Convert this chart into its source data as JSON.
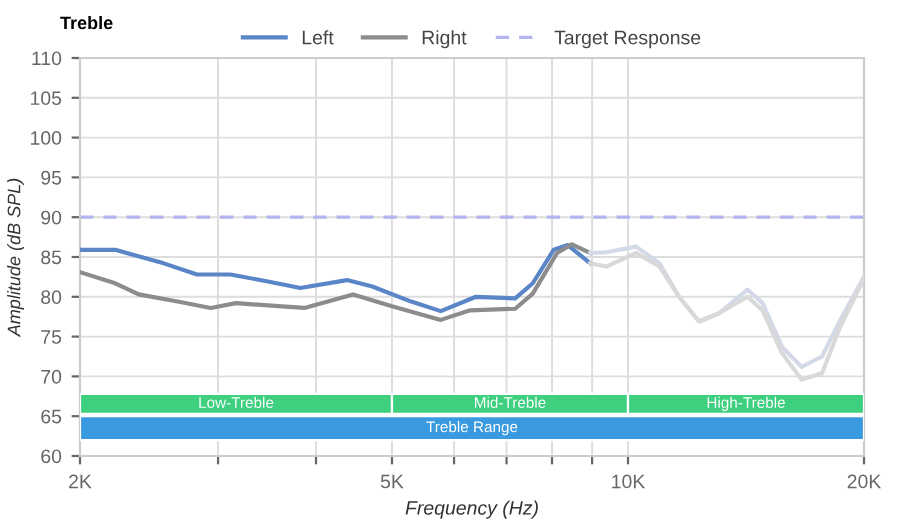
{
  "chart_data": {
    "type": "line",
    "title": "Treble",
    "xlabel": "Frequency (Hz)",
    "ylabel": "Amplitude (dB SPL)",
    "log": "x",
    "xlim": [
      2000,
      20000
    ],
    "ylim": [
      60,
      110
    ],
    "xticks": [
      {
        "value": 2000,
        "label": "2K"
      },
      {
        "value": 3000,
        "label": null
      },
      {
        "value": 4000,
        "label": null
      },
      {
        "value": 5000,
        "label": "5K"
      },
      {
        "value": 6000,
        "label": null
      },
      {
        "value": 7000,
        "label": null
      },
      {
        "value": 8000,
        "label": null
      },
      {
        "value": 9000,
        "label": null
      },
      {
        "value": 10000,
        "label": "10K"
      },
      {
        "value": 20000,
        "label": "20K"
      }
    ],
    "yticks": [
      60,
      65,
      70,
      75,
      80,
      85,
      90,
      95,
      100,
      105,
      110
    ],
    "grid": true,
    "legend": "top",
    "marker": "none",
    "series": [
      {
        "name": "Left",
        "color": "#5a86c8",
        "x": [
          2000,
          2218,
          2558,
          2820,
          3110,
          3486,
          3820,
          4380,
          4720,
          5290,
          5770,
          6400,
          7180,
          7560,
          8040,
          8380,
          8950
        ],
        "values": [
          85.9,
          85.9,
          84.2,
          82.8,
          82.8,
          81.9,
          81.1,
          82.1,
          81.3,
          79.4,
          78.2,
          80.0,
          79.8,
          81.7,
          85.9,
          86.5,
          84.2
        ]
      },
      {
        "name": "Right",
        "color": "#8c8c8c",
        "x": [
          2000,
          2218,
          2376,
          2664,
          2936,
          3162,
          3622,
          3866,
          4460,
          5000,
          5770,
          6290,
          7180,
          7560,
          8120,
          8480,
          8950
        ],
        "values": [
          83.1,
          81.7,
          80.3,
          79.4,
          78.6,
          79.2,
          78.8,
          78.6,
          80.3,
          78.8,
          77.1,
          78.3,
          78.5,
          80.4,
          85.5,
          86.6,
          85.5
        ]
      },
      {
        "color": "#d3d9e6",
        "x": [
          8950,
          9380,
          10240,
          10970,
          11620,
          12320,
          13050,
          14200,
          14850,
          15720,
          16650,
          17680,
          18660,
          20000
        ],
        "values": [
          85.5,
          85.6,
          86.3,
          84.2,
          80.0,
          76.9,
          77.9,
          80.9,
          79.2,
          73.7,
          71.2,
          72.5,
          77.1,
          82.5
        ]
      },
      {
        "color": "#d9d9d9",
        "x": [
          8950,
          9380,
          10240,
          10970,
          11620,
          12320,
          13050,
          14200,
          14850,
          15720,
          16650,
          17680,
          18660,
          20000
        ],
        "values": [
          84.2,
          83.8,
          85.5,
          83.8,
          80.0,
          76.9,
          77.9,
          80.0,
          78.3,
          72.9,
          69.6,
          70.4,
          76.3,
          82.3
        ]
      }
    ],
    "ref_lines": [
      {
        "axis": "y",
        "value": 90,
        "label": "Target Response",
        "color": "#b4b4f0",
        "line_style": "dashed"
      }
    ],
    "bands": [
      {
        "axis": "x",
        "from": 2000,
        "to": 5000,
        "label": "Low-Treble",
        "color": "#3ecf7f"
      },
      {
        "axis": "x",
        "from": 5000,
        "to": 10000,
        "label": "Mid-Treble",
        "color": "#3ecf7f"
      },
      {
        "axis": "x",
        "from": 10000,
        "to": 20000,
        "label": "High-Treble",
        "color": "#3ecf7f"
      },
      {
        "axis": "x",
        "from": 2000,
        "to": 20000,
        "label": "Treble Range",
        "color": "#3a9ae0"
      }
    ]
  }
}
